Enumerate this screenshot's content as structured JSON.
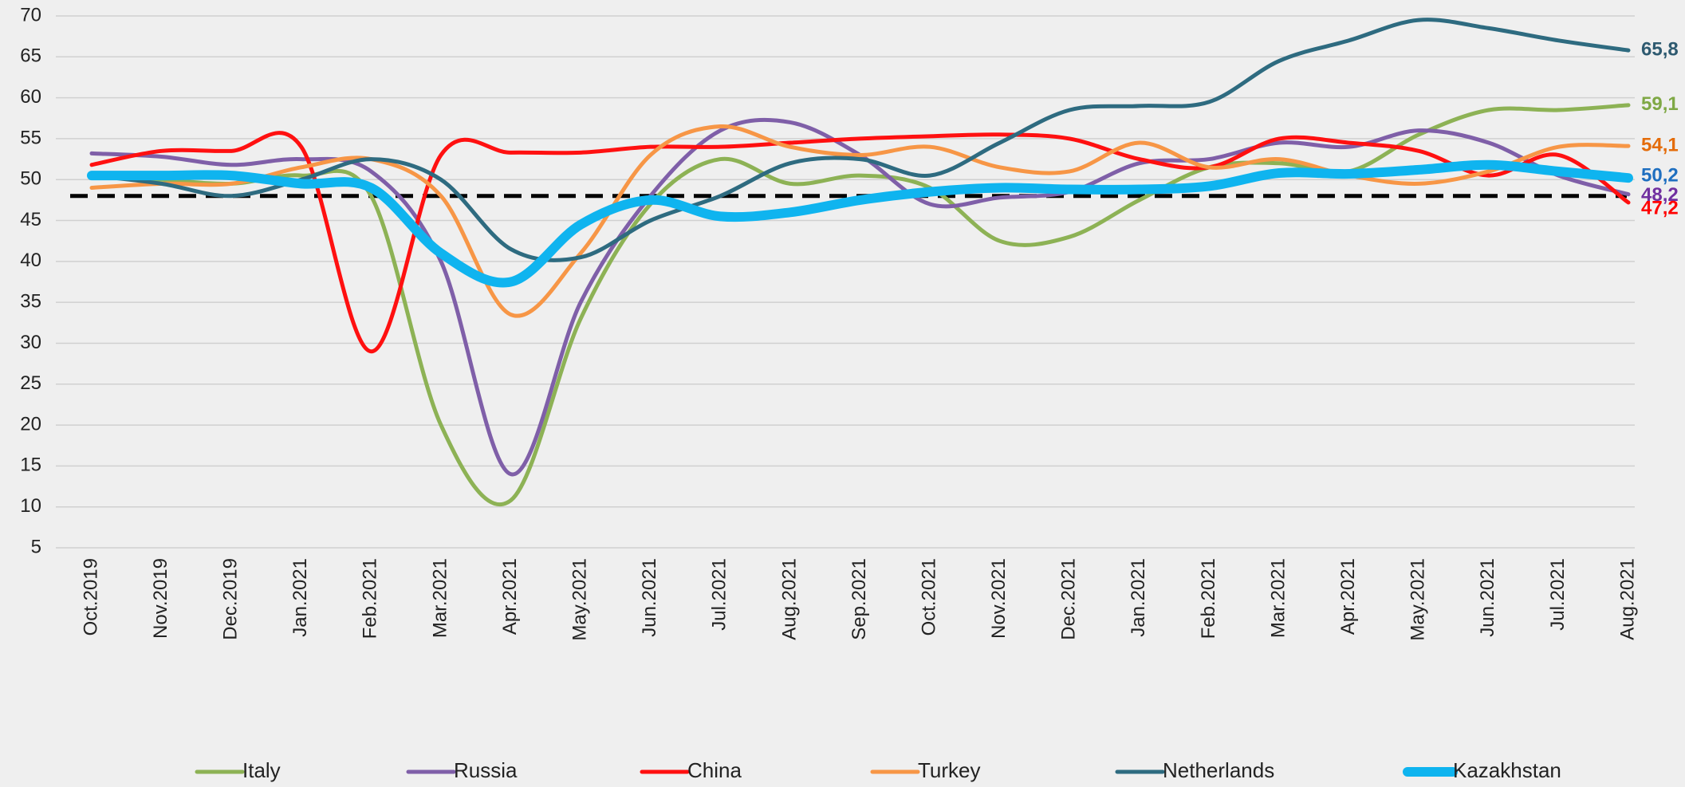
{
  "chart_data": {
    "type": "line",
    "categories": [
      "Oct.2019",
      "Nov.2019",
      "Dec.2019",
      "Jan.2021",
      "Feb.2021",
      "Mar.2021",
      "Apr.2021",
      "May.2021",
      "Jun.2021",
      "Jul.2021",
      "Aug.2021",
      "Sep.2021",
      "Oct.2021",
      "Nov.2021",
      "Dec.2021",
      "Jan.2021",
      "Feb.2021",
      "Mar.2021",
      "Apr.2021",
      "May.2021",
      "Jun.2021",
      "Jul.2021",
      "Aug.2021"
    ],
    "series": [
      {
        "name": "Italy",
        "color": "#8db255",
        "width": 5,
        "end_label": "59,1",
        "label_color": "#7fa845",
        "values": [
          50.5,
          50,
          49.5,
          50.5,
          48,
          20,
          10.8,
          33,
          47,
          52.5,
          49.5,
          50.5,
          49,
          42.5,
          43,
          47.5,
          51.5,
          52,
          51,
          55.5,
          58.5,
          58.5,
          59.1
        ]
      },
      {
        "name": "Russia",
        "color": "#7f5fa8",
        "width": 5,
        "end_label": "48,2",
        "label_color": "#7030a0",
        "values": [
          53.2,
          52.8,
          51.8,
          52.5,
          51,
          40,
          14,
          35,
          48,
          56,
          57,
          53,
          47,
          47.8,
          48.5,
          52,
          52.5,
          54.5,
          54,
          56,
          54.5,
          50.5,
          48.2
        ]
      },
      {
        "name": "China",
        "color": "#ff1010",
        "width": 5,
        "end_label": "47,2",
        "label_color": "#ff0000",
        "values": [
          51.8,
          53.5,
          53.5,
          54,
          29,
          53,
          53.3,
          53.3,
          54,
          54,
          54.5,
          55,
          55.3,
          55.5,
          55,
          52.5,
          51.5,
          55,
          54.5,
          53.5,
          50.5,
          53,
          47.2
        ]
      },
      {
        "name": "Turkey",
        "color": "#f79646",
        "width": 5,
        "end_label": "54,1",
        "label_color": "#e46c0a",
        "values": [
          49,
          49.5,
          49.5,
          51.5,
          52.5,
          48,
          33.5,
          41,
          53,
          56.5,
          54,
          53,
          54,
          51.5,
          51,
          54.5,
          51.5,
          52.5,
          50.5,
          49.5,
          51,
          54,
          54.1
        ]
      },
      {
        "name": "Netherlands",
        "color": "#2e6b80",
        "width": 5,
        "end_label": "65,8",
        "label_color": "#2e5a70",
        "values": [
          50.5,
          49.5,
          48,
          50,
          52.5,
          50,
          41.5,
          40.5,
          45,
          48,
          52,
          52.5,
          50.5,
          54.5,
          58.5,
          59,
          59.5,
          64.5,
          67,
          69.5,
          68.5,
          67,
          65.8
        ]
      },
      {
        "name": "Kazakhstan",
        "color": "#0fb4ef",
        "width": 12,
        "end_label": "50,2",
        "label_color": "#1f6fc0",
        "values": [
          50.5,
          50.5,
          50.5,
          49.5,
          49,
          41,
          37.5,
          44.5,
          47.5,
          45.5,
          46,
          47.5,
          48.5,
          49,
          48.8,
          48.8,
          49.2,
          50.8,
          50.7,
          51.2,
          51.8,
          51,
          50.2
        ]
      }
    ],
    "reference_line": 48,
    "ylim": [
      5,
      70
    ],
    "yticks": [
      5,
      10,
      15,
      20,
      25,
      30,
      35,
      40,
      45,
      50,
      55,
      60,
      65,
      70
    ],
    "grid": true
  }
}
